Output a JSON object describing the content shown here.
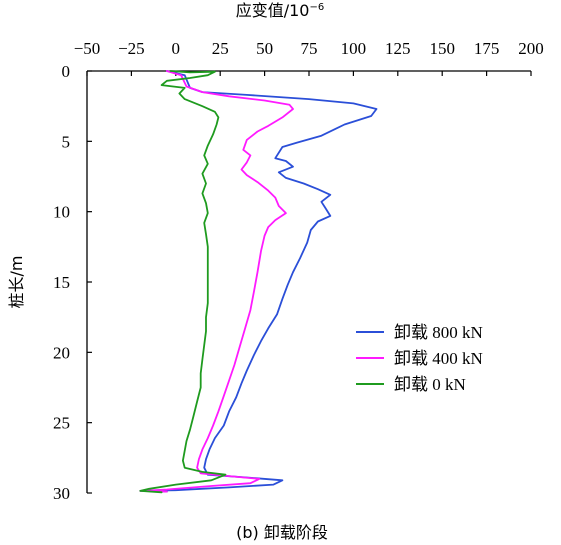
{
  "chart_data": {
    "type": "line",
    "orientation": "vertical-profile",
    "title": "",
    "xlabel": "应变值/10",
    "xlabel_exponent": "−6",
    "ylabel": "桩长/m",
    "caption": "(b)  卸载阶段",
    "x_axis_position": "top",
    "y_axis_direction": "downward",
    "xlim": [
      -50,
      200
    ],
    "ylim": [
      0,
      30
    ],
    "x_ticks": [
      -50,
      -25,
      0,
      25,
      50,
      75,
      100,
      125,
      150,
      175,
      200
    ],
    "x_tick_labels": [
      "−50",
      "−25",
      "0",
      "25",
      "50",
      "75",
      "100",
      "125",
      "150",
      "175",
      "200"
    ],
    "y_ticks": [
      0,
      5,
      10,
      15,
      20,
      25,
      30
    ],
    "y_tick_labels": [
      "0",
      "5",
      "10",
      "15",
      "20",
      "25",
      "30"
    ],
    "grid": false,
    "legend_position": "right-middle",
    "series": [
      {
        "name": "卸载 800 kN",
        "color": "#2b4fd8",
        "points": [
          [
            -5,
            0
          ],
          [
            5,
            0.3
          ],
          [
            8,
            1.2
          ],
          [
            15,
            1.5
          ],
          [
            40,
            1.7
          ],
          [
            75,
            2.0
          ],
          [
            100,
            2.3
          ],
          [
            113,
            2.7
          ],
          [
            110,
            3.2
          ],
          [
            95,
            3.8
          ],
          [
            82,
            4.6
          ],
          [
            68,
            5.1
          ],
          [
            60,
            5.4
          ],
          [
            56,
            6.2
          ],
          [
            62,
            6.4
          ],
          [
            66,
            6.8
          ],
          [
            58,
            7.2
          ],
          [
            62,
            7.6
          ],
          [
            72,
            8.0
          ],
          [
            80,
            8.4
          ],
          [
            87,
            8.8
          ],
          [
            82,
            9.3
          ],
          [
            84,
            9.7
          ],
          [
            87,
            10.3
          ],
          [
            80,
            10.7
          ],
          [
            76,
            11.3
          ],
          [
            74,
            12.2
          ],
          [
            70,
            13.3
          ],
          [
            66,
            14.3
          ],
          [
            63,
            15.2
          ],
          [
            60,
            16.2
          ],
          [
            57,
            17.3
          ],
          [
            52,
            18.3
          ],
          [
            48,
            19.2
          ],
          [
            44,
            20.2
          ],
          [
            40,
            21.3
          ],
          [
            37,
            22.2
          ],
          [
            34,
            23.2
          ],
          [
            30,
            24.2
          ],
          [
            27,
            25.2
          ],
          [
            22,
            26.1
          ],
          [
            19,
            26.9
          ],
          [
            17,
            27.6
          ],
          [
            16,
            28.2
          ],
          [
            18,
            28.7
          ],
          [
            40,
            28.9
          ],
          [
            60,
            29.1
          ],
          [
            55,
            29.4
          ],
          [
            30,
            29.6
          ],
          [
            0,
            29.8
          ],
          [
            -20,
            29.85
          ],
          [
            -5,
            29.9
          ]
        ]
      },
      {
        "name": "卸载 400 kN",
        "color": "#ff1aff",
        "points": [
          [
            -5,
            0
          ],
          [
            3,
            0.3
          ],
          [
            6,
            1.1
          ],
          [
            15,
            1.5
          ],
          [
            30,
            1.8
          ],
          [
            50,
            2.1
          ],
          [
            64,
            2.4
          ],
          [
            66,
            2.7
          ],
          [
            60,
            3.3
          ],
          [
            52,
            3.9
          ],
          [
            46,
            4.3
          ],
          [
            40,
            4.9
          ],
          [
            38,
            5.6
          ],
          [
            42,
            6.0
          ],
          [
            40,
            6.5
          ],
          [
            37,
            7.0
          ],
          [
            40,
            7.4
          ],
          [
            46,
            7.9
          ],
          [
            52,
            8.5
          ],
          [
            56,
            9.0
          ],
          [
            58,
            9.6
          ],
          [
            62,
            10.1
          ],
          [
            56,
            10.6
          ],
          [
            52,
            11.1
          ],
          [
            50,
            11.7
          ],
          [
            48,
            12.8
          ],
          [
            46,
            14.3
          ],
          [
            44,
            15.7
          ],
          [
            42,
            17.0
          ],
          [
            39,
            18.3
          ],
          [
            36,
            19.6
          ],
          [
            33,
            20.9
          ],
          [
            30,
            22.0
          ],
          [
            27,
            23.1
          ],
          [
            24,
            24.2
          ],
          [
            21,
            25.2
          ],
          [
            18,
            26.1
          ],
          [
            15,
            26.9
          ],
          [
            13,
            27.6
          ],
          [
            12,
            28.2
          ],
          [
            14,
            28.6
          ],
          [
            30,
            28.8
          ],
          [
            47,
            29.0
          ],
          [
            42,
            29.3
          ],
          [
            20,
            29.5
          ],
          [
            -5,
            29.75
          ],
          [
            -20,
            29.85
          ],
          [
            -5,
            29.9
          ]
        ]
      },
      {
        "name": "卸载 0 kN",
        "color": "#1f9b1f",
        "points": [
          [
            -3,
            0
          ],
          [
            8,
            0.1
          ],
          [
            22,
            0.05
          ],
          [
            18,
            0.3
          ],
          [
            8,
            0.5
          ],
          [
            -5,
            0.7
          ],
          [
            -8,
            1.0
          ],
          [
            5,
            1.2
          ],
          [
            2,
            1.6
          ],
          [
            5,
            2.0
          ],
          [
            15,
            2.5
          ],
          [
            22,
            2.9
          ],
          [
            24,
            3.3
          ],
          [
            23,
            3.8
          ],
          [
            21,
            4.5
          ],
          [
            18,
            5.3
          ],
          [
            16,
            6.0
          ],
          [
            18,
            6.6
          ],
          [
            15,
            7.3
          ],
          [
            17,
            8.0
          ],
          [
            15,
            8.7
          ],
          [
            17,
            9.4
          ],
          [
            18,
            10.1
          ],
          [
            16,
            10.8
          ],
          [
            17,
            11.6
          ],
          [
            18,
            12.5
          ],
          [
            18,
            13.5
          ],
          [
            18,
            14.5
          ],
          [
            18,
            15.5
          ],
          [
            18,
            16.5
          ],
          [
            17,
            17.5
          ],
          [
            17,
            18.5
          ],
          [
            16,
            19.5
          ],
          [
            15,
            20.5
          ],
          [
            14,
            21.5
          ],
          [
            14,
            22.5
          ],
          [
            12,
            23.5
          ],
          [
            10,
            24.5
          ],
          [
            8,
            25.5
          ],
          [
            6,
            26.3
          ],
          [
            5,
            27.0
          ],
          [
            4,
            27.7
          ],
          [
            5,
            28.2
          ],
          [
            15,
            28.5
          ],
          [
            28,
            28.7
          ],
          [
            20,
            29.1
          ],
          [
            0,
            29.4
          ],
          [
            -15,
            29.7
          ],
          [
            -20,
            29.85
          ],
          [
            -8,
            29.95
          ]
        ]
      }
    ]
  }
}
